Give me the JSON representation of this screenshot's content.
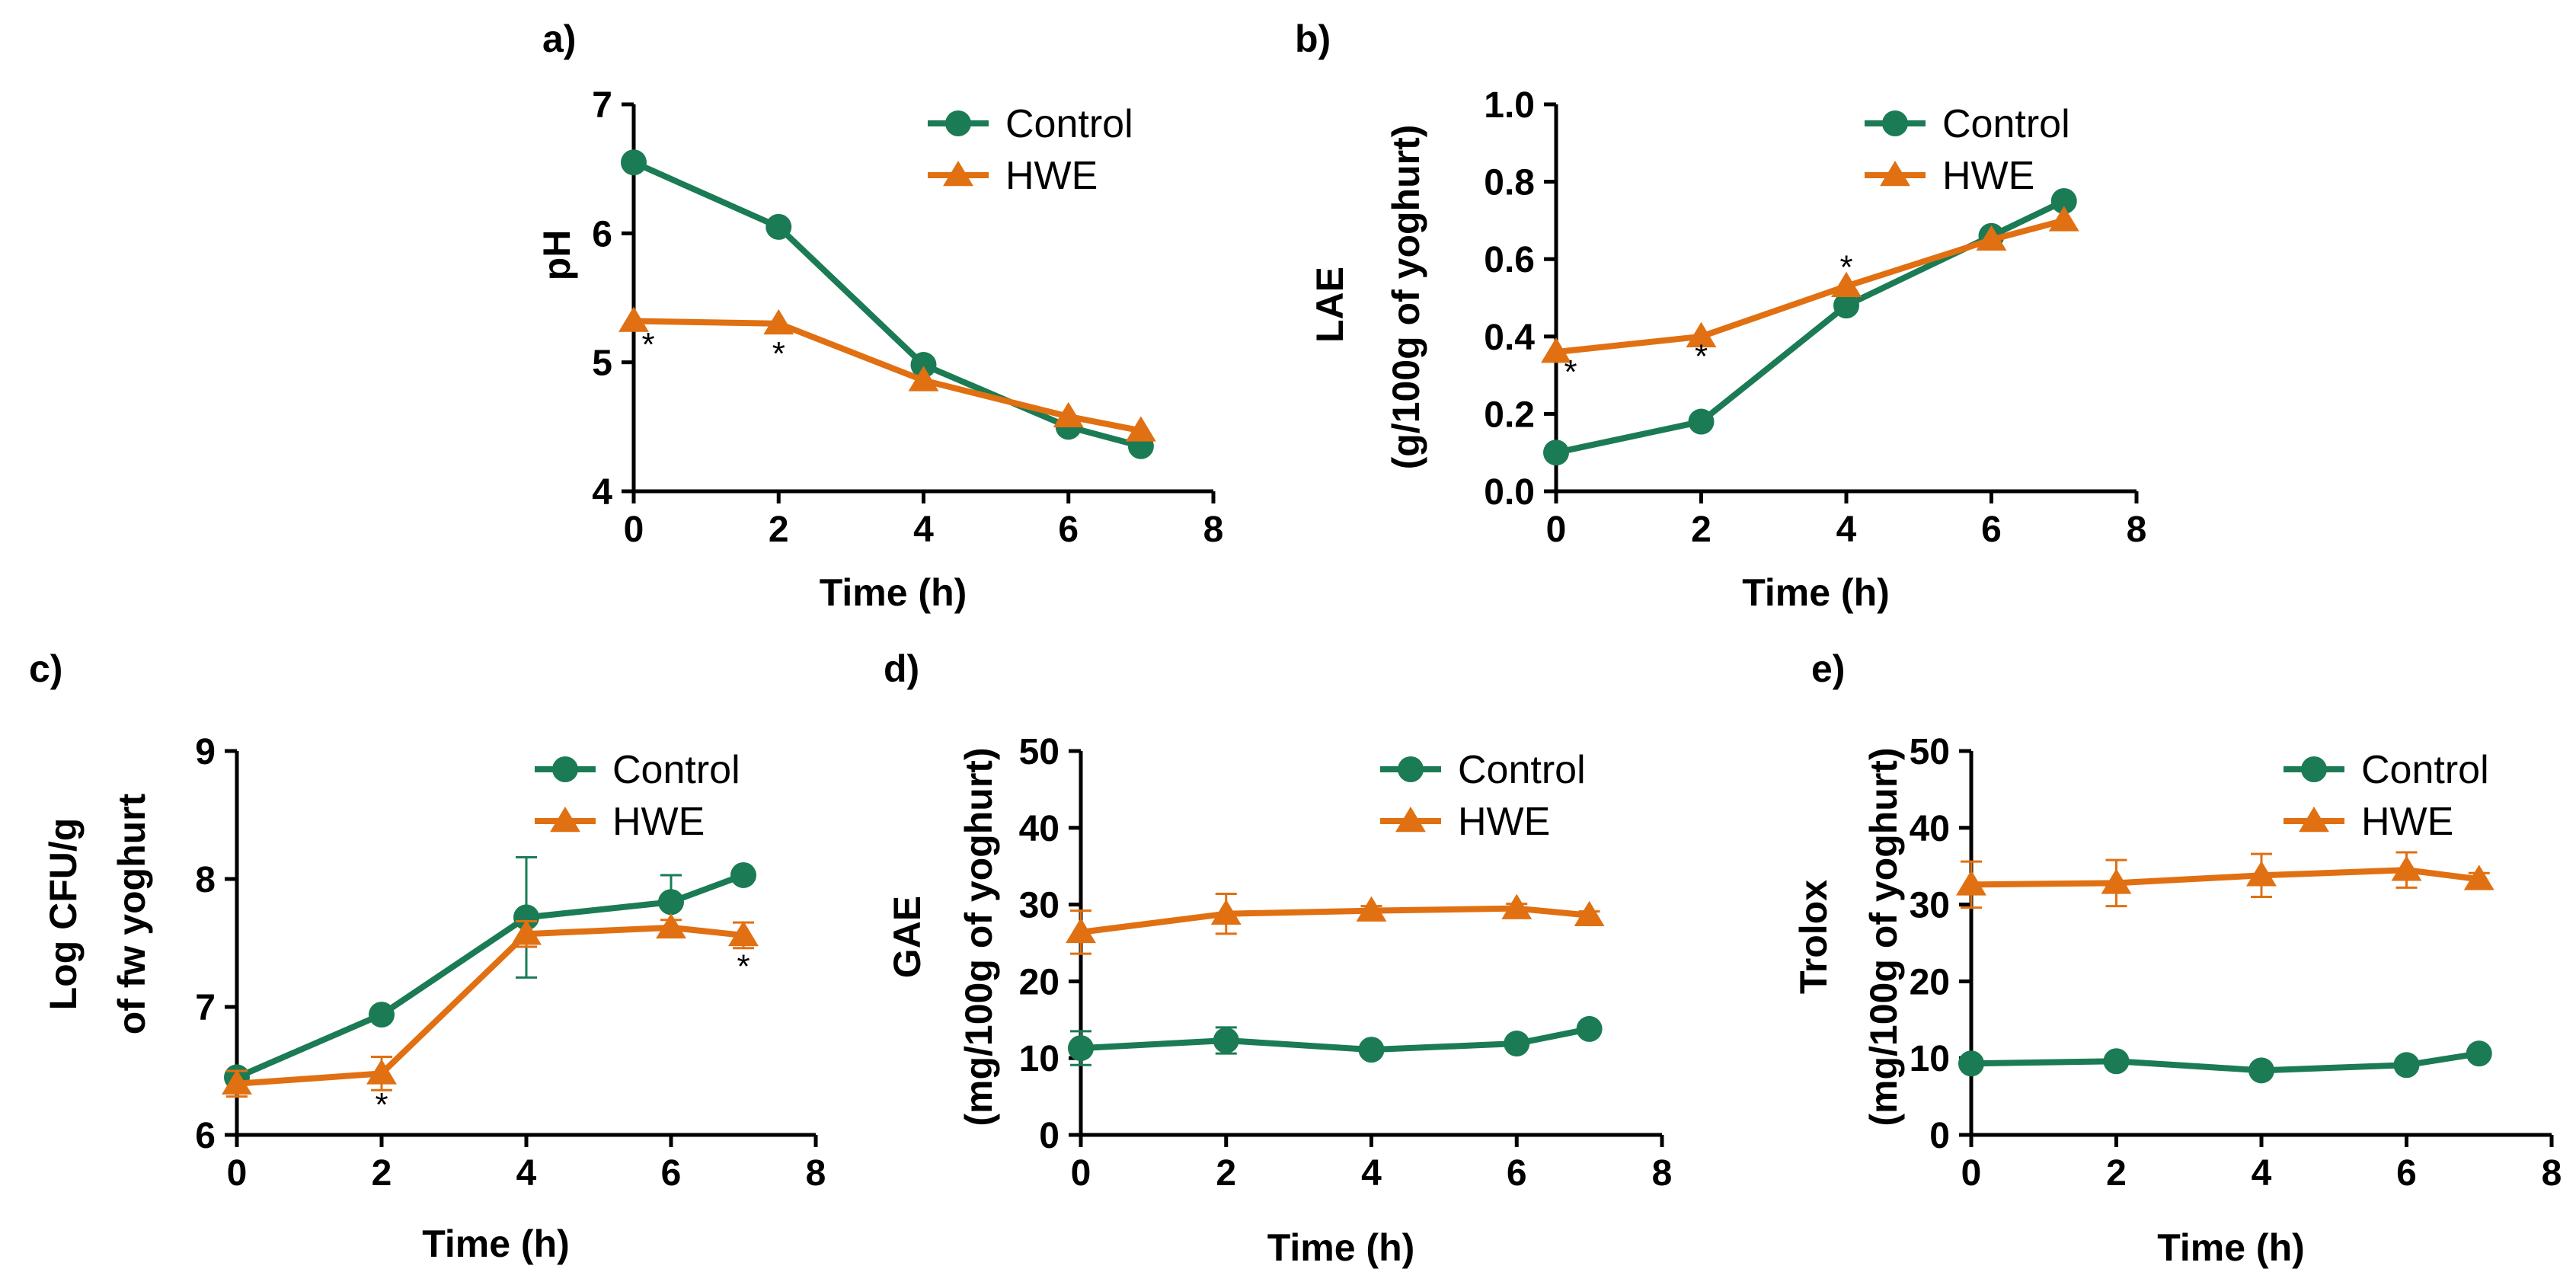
{
  "chart_data": [
    {
      "type": "line",
      "panel": "a)",
      "xlabel": "Time (h)",
      "ylabel": [
        "pH"
      ],
      "xlim": [
        0,
        8
      ],
      "ylim": [
        4,
        7
      ],
      "xticks": [
        0,
        2,
        4,
        6,
        8
      ],
      "yticks": [
        4,
        5,
        6,
        7
      ],
      "ytick_labels": [
        "4",
        "5",
        "6",
        "7"
      ],
      "legend": "top-right",
      "series": [
        {
          "name": "Control",
          "color": "#1b7b54",
          "marker": "circle",
          "x": [
            0,
            2,
            4,
            6,
            7
          ],
          "y": [
            6.55,
            6.05,
            4.98,
            4.5,
            4.35
          ],
          "err": [
            0,
            0,
            0,
            0,
            0
          ]
        },
        {
          "name": "HWE",
          "color": "#e07012",
          "marker": "triangle",
          "x": [
            0,
            2,
            4,
            6,
            7
          ],
          "y": [
            5.32,
            5.3,
            4.86,
            4.58,
            4.47
          ],
          "err": [
            0,
            0,
            0,
            0,
            0
          ]
        }
      ],
      "annotations": [
        {
          "text": "*",
          "x": 0.2,
          "y": 5.05
        },
        {
          "text": "*",
          "x": 2.0,
          "y": 4.98
        }
      ]
    },
    {
      "type": "line",
      "panel": "b)",
      "xlabel": "Time (h)",
      "ylabel": [
        "LAE",
        "(g/100g of yoghurt)"
      ],
      "xlim": [
        0,
        8
      ],
      "ylim": [
        0,
        1.0
      ],
      "xticks": [
        0,
        2,
        4,
        6,
        8
      ],
      "yticks": [
        0,
        0.2,
        0.4,
        0.6,
        0.8,
        1.0
      ],
      "ytick_labels": [
        "0.0",
        "0.2",
        "0.4",
        "0.6",
        "0.8",
        "1.0"
      ],
      "legend": "top-right",
      "series": [
        {
          "name": "Control",
          "color": "#1b7b54",
          "marker": "circle",
          "x": [
            0,
            2,
            4,
            6,
            7
          ],
          "y": [
            0.1,
            0.18,
            0.48,
            0.66,
            0.75
          ],
          "err": [
            0,
            0,
            0,
            0,
            0
          ]
        },
        {
          "name": "HWE",
          "color": "#e07012",
          "marker": "triangle",
          "x": [
            0,
            2,
            4,
            6,
            7
          ],
          "y": [
            0.36,
            0.4,
            0.53,
            0.65,
            0.7
          ],
          "err": [
            0,
            0,
            0,
            0,
            0
          ]
        }
      ],
      "annotations": [
        {
          "text": "*",
          "x": 0.2,
          "y": 0.28
        },
        {
          "text": "*",
          "x": 2.0,
          "y": 0.32
        },
        {
          "text": "*",
          "x": 4.0,
          "y": 0.55
        }
      ]
    },
    {
      "type": "line",
      "panel": "c)",
      "xlabel": "Time (h)",
      "ylabel": [
        "Log CFU/g",
        "of fw yoghurt"
      ],
      "xlim": [
        0,
        8
      ],
      "ylim": [
        6,
        9
      ],
      "xticks": [
        0,
        2,
        4,
        6,
        8
      ],
      "yticks": [
        6,
        7,
        8,
        9
      ],
      "ytick_labels": [
        "6",
        "7",
        "8",
        "9"
      ],
      "legend": "top-right",
      "series": [
        {
          "name": "Control",
          "color": "#1b7b54",
          "marker": "circle",
          "x": [
            0,
            2,
            4,
            6,
            7
          ],
          "y": [
            6.45,
            6.94,
            7.7,
            7.82,
            8.03
          ],
          "err": [
            0.05,
            0.04,
            0.47,
            0.21,
            0.03
          ]
        },
        {
          "name": "HWE",
          "color": "#e07012",
          "marker": "triangle",
          "x": [
            0,
            2,
            4,
            6,
            7
          ],
          "y": [
            6.4,
            6.48,
            7.57,
            7.62,
            7.56
          ],
          "err": [
            0.1,
            0.13,
            0.1,
            0.06,
            0.1
          ]
        }
      ],
      "annotations": [
        {
          "text": "*",
          "x": 2.0,
          "y": 6.15
        },
        {
          "text": "*",
          "x": 7.0,
          "y": 7.23
        }
      ]
    },
    {
      "type": "line",
      "panel": "d)",
      "xlabel": "Time (h)",
      "ylabel": [
        "GAE",
        "(mg/100g of yoghurt)"
      ],
      "xlim": [
        0,
        8
      ],
      "ylim": [
        0,
        50
      ],
      "xticks": [
        0,
        2,
        4,
        6,
        8
      ],
      "yticks": [
        0,
        10,
        20,
        30,
        40,
        50
      ],
      "ytick_labels": [
        "0",
        "10",
        "20",
        "30",
        "40",
        "50"
      ],
      "legend": "top-right",
      "series": [
        {
          "name": "Control",
          "color": "#1b7b54",
          "marker": "circle",
          "x": [
            0,
            2,
            4,
            6,
            7
          ],
          "y": [
            11.3,
            12.3,
            11.1,
            11.9,
            13.8
          ],
          "err": [
            2.2,
            1.7,
            0.5,
            0.6,
            0.5
          ]
        },
        {
          "name": "HWE",
          "color": "#e07012",
          "marker": "triangle",
          "x": [
            0,
            2,
            4,
            6,
            7
          ],
          "y": [
            26.4,
            28.8,
            29.2,
            29.5,
            28.6
          ],
          "err": [
            2.8,
            2.6,
            0.6,
            0.6,
            0.5
          ]
        }
      ],
      "annotations": []
    },
    {
      "type": "line",
      "panel": "e)",
      "xlabel": "Time (h)",
      "ylabel": [
        "Trolox",
        "(mg/100g of yoghurt)"
      ],
      "xlim": [
        0,
        8
      ],
      "ylim": [
        0,
        50
      ],
      "xticks": [
        0,
        2,
        4,
        6,
        8
      ],
      "yticks": [
        0,
        10,
        20,
        30,
        40,
        50
      ],
      "ytick_labels": [
        "0",
        "10",
        "20",
        "30",
        "40",
        "50"
      ],
      "legend": "top-right",
      "series": [
        {
          "name": "Control",
          "color": "#1b7b54",
          "marker": "circle",
          "x": [
            0,
            2,
            4,
            6,
            7
          ],
          "y": [
            9.3,
            9.6,
            8.4,
            9.1,
            10.6
          ],
          "err": [
            0.4,
            0.5,
            0.5,
            0.6,
            0.5
          ]
        },
        {
          "name": "HWE",
          "color": "#e07012",
          "marker": "triangle",
          "x": [
            0,
            2,
            4,
            6,
            7
          ],
          "y": [
            32.6,
            32.8,
            33.8,
            34.5,
            33.3
          ],
          "err": [
            3.0,
            3.0,
            2.8,
            2.3,
            0.8
          ]
        }
      ],
      "annotations": []
    }
  ]
}
